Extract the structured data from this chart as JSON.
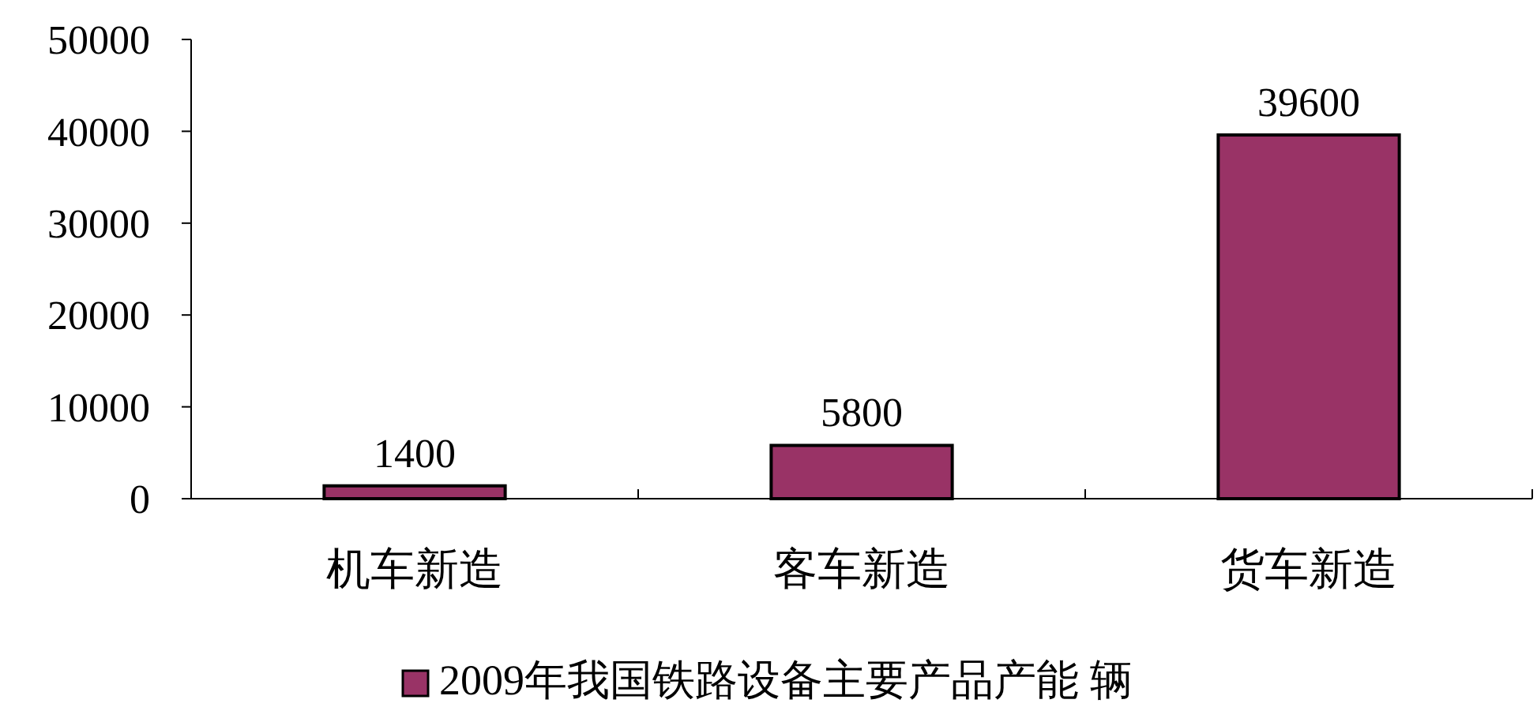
{
  "chart_data": {
    "type": "bar",
    "categories": [
      "机车新造",
      "客车新造",
      "货车新造"
    ],
    "series": [
      {
        "name": "2009年我国铁路设备主要产品产能 辆",
        "color": "#993366",
        "values": [
          1400,
          5800,
          39600
        ]
      }
    ],
    "ylim": [
      0,
      50000
    ],
    "yticks": [
      0,
      10000,
      20000,
      30000,
      40000,
      50000
    ],
    "data_labels": true,
    "grid": false,
    "legend": "bottom"
  }
}
